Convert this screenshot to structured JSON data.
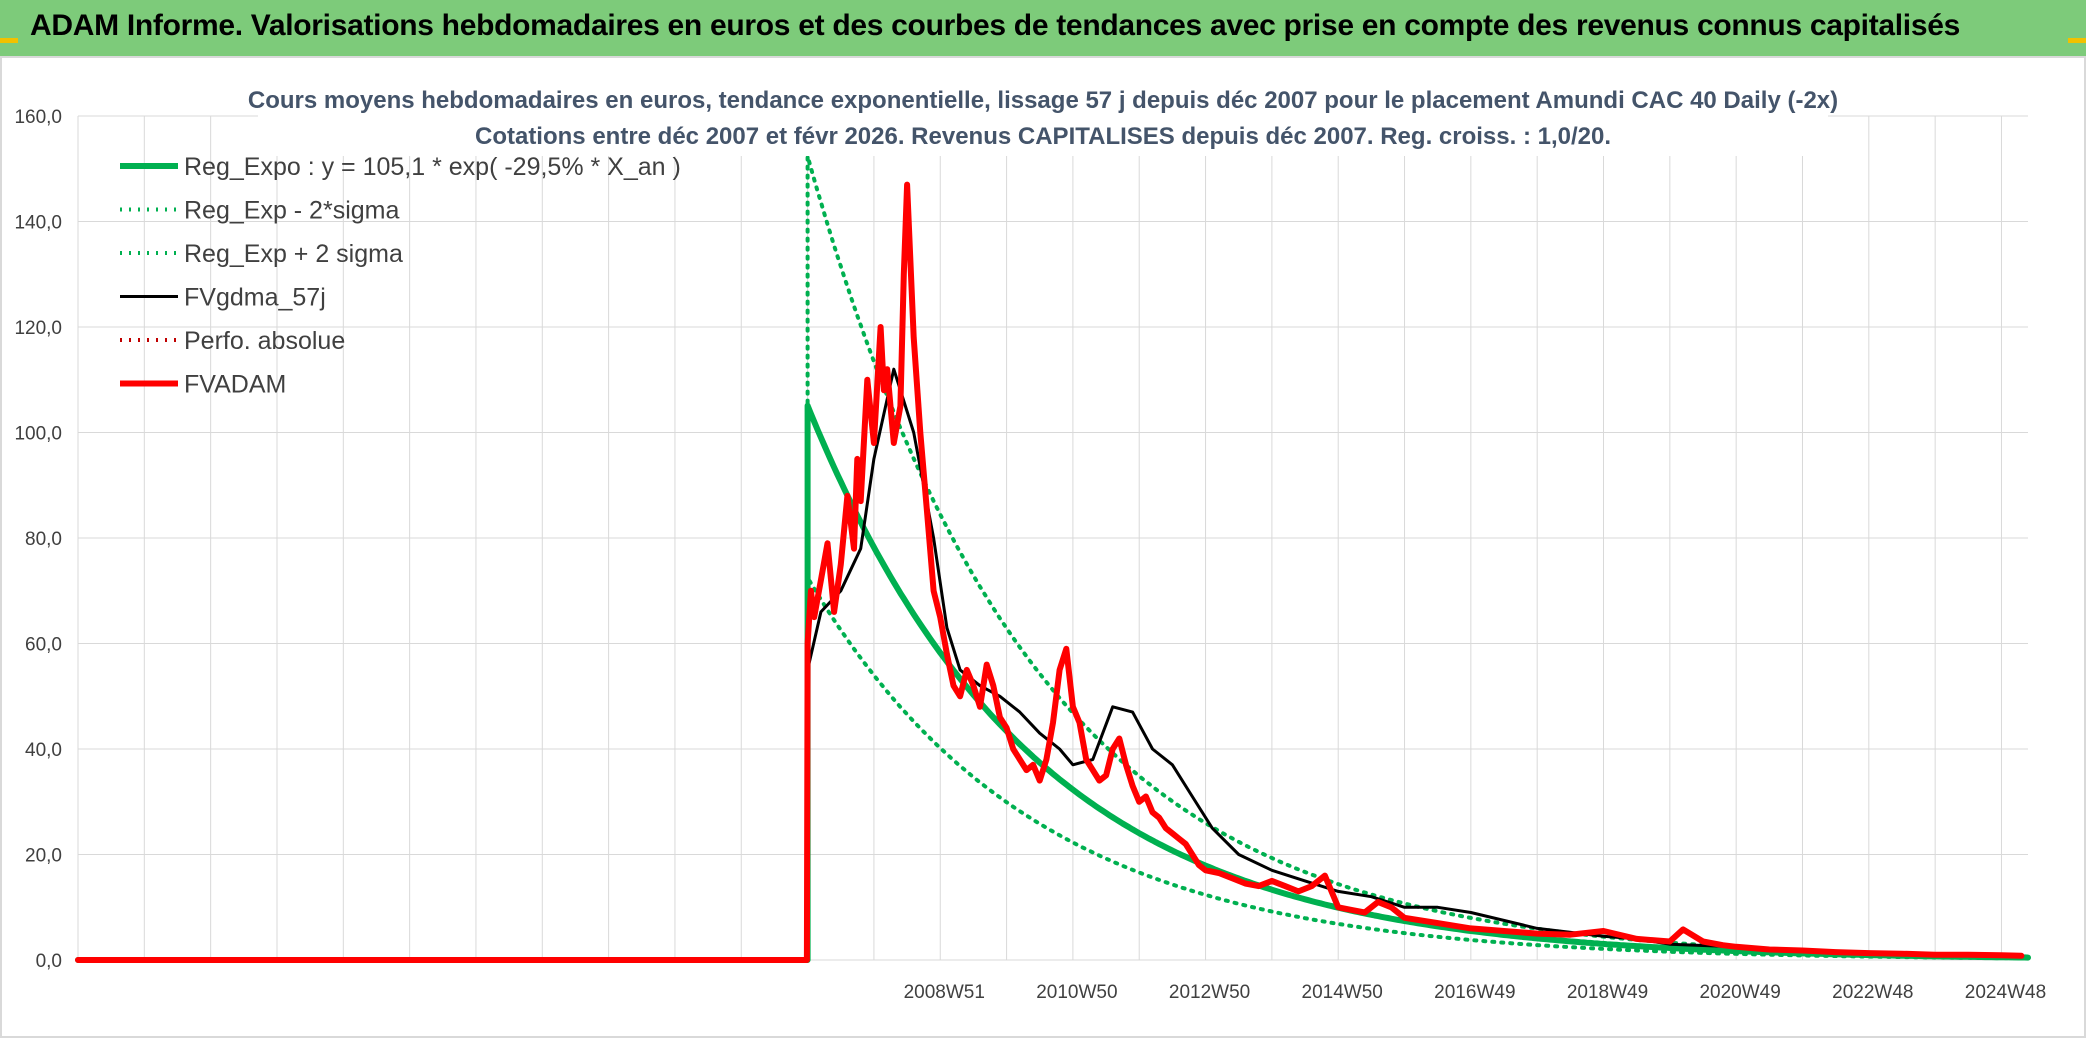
{
  "header": {
    "title": "ADAM Informe. Valorisations hebdomadaires en euros et des courbes de tendances avec prise en compte des revenus connus capitalisés"
  },
  "chart_data": {
    "type": "line",
    "title_line1": "Cours moyens hebdomadaires en euros, tendance exponentielle, lissage 57 j depuis déc 2007 pour le placement Amundi CAC 40 Daily (-2x)",
    "title_line2": "Cotations entre déc 2007 et févr 2026. Revenus CAPITALISES depuis déc 2007. Reg. croiss. : 1,0/20.",
    "y_ticks": [
      "0,0",
      "20,0",
      "40,0",
      "60,0",
      "80,0",
      "100,0",
      "120,0",
      "140,0",
      "160,0"
    ],
    "ylim": [
      0,
      160
    ],
    "x_ticks": [
      "2008W51",
      "2010W50",
      "2012W50",
      "2014W50",
      "2016W49",
      "2018W49",
      "2020W49",
      "2022W48",
      "2024W48"
    ],
    "xlim": [
      1996,
      2025.4
    ],
    "grid": true,
    "legend_position": "top-left",
    "colors": {
      "green": "#00b050",
      "black": "#000000",
      "red": "#ff0000",
      "banner": "#7dcb7a"
    },
    "series": [
      {
        "name": "Reg_Expo : y = 105,1 * exp( -29,5% *  X_an )",
        "style": "solid-thick",
        "color": "#00b050",
        "a": 105.1,
        "rate": -0.295
      },
      {
        "name": "Reg_Exp - 2*sigma",
        "style": "dotted",
        "color": "#00b050",
        "a": 72.5,
        "rate": -0.295
      },
      {
        "name": "Reg_Exp + 2 sigma",
        "style": "dotted",
        "color": "#00b050",
        "a": 152.4,
        "rate": -0.295
      },
      {
        "name": "FVgdma_57j",
        "style": "solid",
        "color": "#000000",
        "x": [
          2007.0,
          2007.2,
          2007.5,
          2007.8,
          2008.0,
          2008.3,
          2008.6,
          2008.9,
          2009.1,
          2009.3,
          2009.6,
          2009.9,
          2010.2,
          2010.5,
          2010.8,
          2011.0,
          2011.3,
          2011.6,
          2011.9,
          2012.2,
          2012.5,
          2012.8,
          2013.1,
          2013.5,
          2014.0,
          2014.5,
          2015.0,
          2015.5,
          2016.0,
          2016.5,
          2017.0,
          2018.0,
          2019.0,
          2019.5,
          2020.0,
          2021.0,
          2022.0,
          2023.0,
          2024.0,
          2025.3
        ],
        "y": [
          55,
          66,
          70,
          78,
          95,
          112,
          100,
          80,
          63,
          55,
          52,
          50,
          47,
          43,
          40,
          37,
          38,
          48,
          47,
          40,
          37,
          31,
          25,
          20,
          17,
          15,
          13,
          12,
          10,
          10,
          9,
          6,
          4.5,
          4,
          3,
          2.5,
          1.8,
          1.4,
          1.2,
          1.0
        ]
      },
      {
        "name": "Perfo. absolue",
        "style": "dotted",
        "color": "#c00000",
        "x": [],
        "y": []
      },
      {
        "name": "FVADAM",
        "style": "solid-thick",
        "color": "#ff0000",
        "x": [
          1996.0,
          2006.99,
          2007.0,
          2007.05,
          2007.1,
          2007.2,
          2007.3,
          2007.4,
          2007.5,
          2007.6,
          2007.7,
          2007.75,
          2007.8,
          2007.9,
          2008.0,
          2008.1,
          2008.15,
          2008.2,
          2008.3,
          2008.4,
          2008.45,
          2008.5,
          2008.6,
          2008.7,
          2008.8,
          2008.9,
          2009.0,
          2009.1,
          2009.2,
          2009.3,
          2009.4,
          2009.5,
          2009.6,
          2009.7,
          2009.8,
          2009.9,
          2010.0,
          2010.1,
          2010.2,
          2010.3,
          2010.4,
          2010.5,
          2010.6,
          2010.7,
          2010.8,
          2010.9,
          2011.0,
          2011.1,
          2011.2,
          2011.3,
          2011.4,
          2011.5,
          2011.6,
          2011.7,
          2011.8,
          2011.9,
          2012.0,
          2012.1,
          2012.2,
          2012.3,
          2012.4,
          2012.5,
          2012.6,
          2012.7,
          2012.8,
          2012.9,
          2013.0,
          2013.2,
          2013.4,
          2013.6,
          2013.8,
          2014.0,
          2014.2,
          2014.4,
          2014.6,
          2014.8,
          2015.0,
          2015.2,
          2015.4,
          2015.6,
          2015.8,
          2016.0,
          2016.5,
          2017.0,
          2017.5,
          2018.0,
          2018.5,
          2019.0,
          2019.5,
          2020.0,
          2020.2,
          2020.5,
          2020.8,
          2021.0,
          2021.5,
          2022.0,
          2022.5,
          2023.0,
          2023.5,
          2024.0,
          2024.5,
          2025.0,
          2025.3
        ],
        "y": [
          0,
          0,
          60,
          70,
          65,
          72,
          79,
          66,
          75,
          88,
          78,
          95,
          87,
          110,
          98,
          120,
          108,
          112,
          98,
          105,
          130,
          147,
          118,
          100,
          85,
          70,
          65,
          58,
          52,
          50,
          55,
          52,
          48,
          56,
          52,
          46,
          44,
          40,
          38,
          36,
          37,
          34,
          38,
          45,
          55,
          59,
          48,
          45,
          38,
          36,
          34,
          35,
          40,
          42,
          37,
          33,
          30,
          31,
          28,
          27,
          25,
          24,
          23,
          22,
          20,
          18,
          17,
          16.5,
          15.5,
          14.5,
          14,
          15,
          14,
          13,
          14,
          16,
          10,
          9.5,
          9,
          11,
          10,
          8,
          7,
          6,
          5.5,
          5,
          4.8,
          5.5,
          4,
          3.5,
          5.8,
          3.5,
          2.8,
          2.5,
          2.0,
          1.8,
          1.5,
          1.3,
          1.2,
          1.0,
          1.0,
          0.9,
          0.8
        ]
      }
    ]
  }
}
